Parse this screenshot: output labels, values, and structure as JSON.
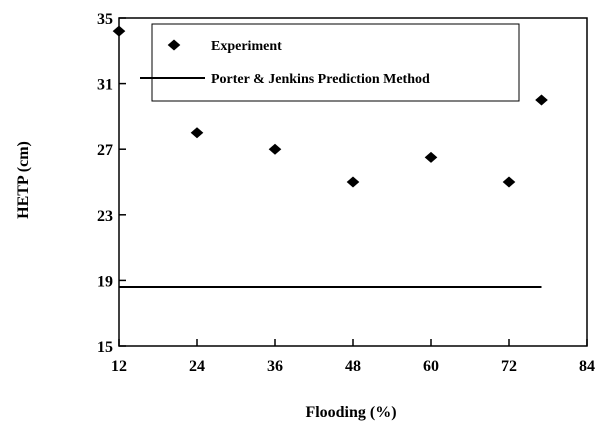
{
  "chart_data": {
    "type": "scatter",
    "xlabel": "Flooding (%)",
    "ylabel": "HETP (cm)",
    "xlim": [
      12,
      84
    ],
    "ylim": [
      15,
      35
    ],
    "xticks": [
      12,
      24,
      36,
      48,
      60,
      72,
      84
    ],
    "yticks": [
      15,
      19,
      23,
      27,
      31,
      35
    ],
    "grid": false,
    "legend_position": "top",
    "series": [
      {
        "name": "Experiment",
        "kind": "scatter",
        "marker": "diamond",
        "color": "#000000",
        "x": [
          12,
          24,
          36,
          48,
          60,
          72,
          77
        ],
        "y": [
          34.2,
          28.0,
          27.0,
          25.0,
          26.5,
          25.0,
          30.0
        ]
      },
      {
        "name": "Porter & Jenkins Prediction Method",
        "kind": "line",
        "color": "#000000",
        "x": [
          12,
          77
        ],
        "y": [
          18.6,
          18.6
        ]
      }
    ]
  }
}
